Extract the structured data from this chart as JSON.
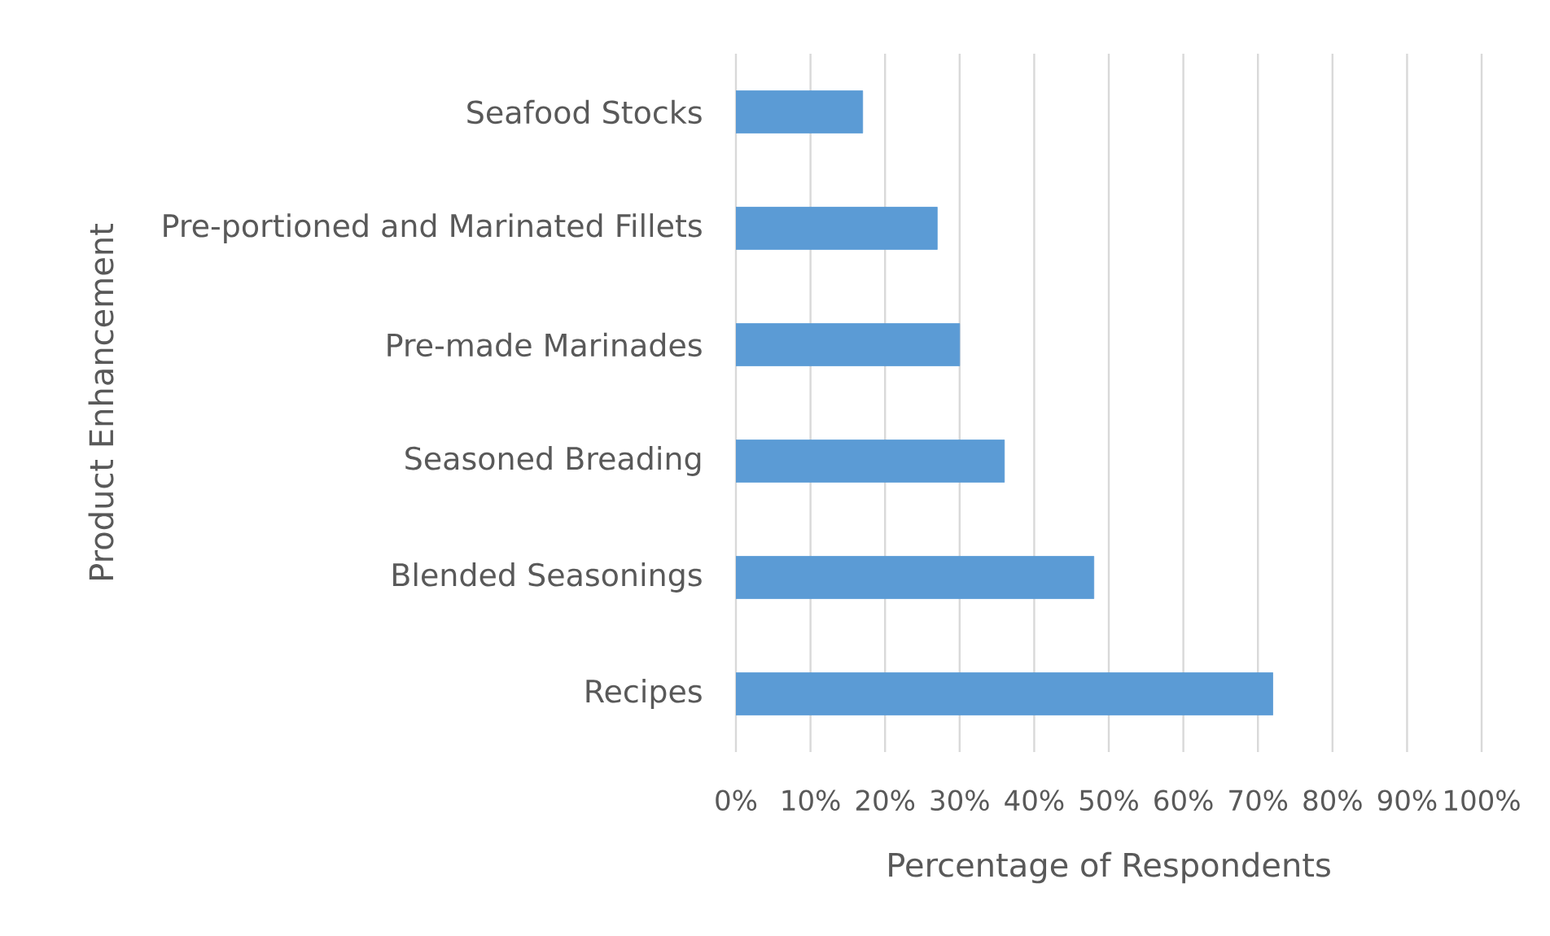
{
  "chart_data": {
    "type": "bar",
    "orientation": "horizontal",
    "xlabel": "Percentage of Respondents",
    "ylabel": "Product Enhancement",
    "categories": [
      "Seafood Stocks",
      "Pre-portioned and Marinated Fillets",
      "Pre-made Marinades",
      "Seasoned Breading",
      "Blended Seasonings",
      "Recipes"
    ],
    "values": [
      17,
      27,
      30,
      36,
      48,
      72
    ],
    "color": "#5b9bd5",
    "xlim": [
      0,
      100
    ],
    "xticks": [
      {
        "value": 0,
        "label": "0%"
      },
      {
        "value": 10,
        "label": "10%"
      },
      {
        "value": 20,
        "label": "20%"
      },
      {
        "value": 30,
        "label": "30%"
      },
      {
        "value": 40,
        "label": "40%"
      },
      {
        "value": 50,
        "label": "50%"
      },
      {
        "value": 60,
        "label": "60%"
      },
      {
        "value": 70,
        "label": "70%"
      },
      {
        "value": 80,
        "label": "80%"
      },
      {
        "value": 90,
        "label": "90%"
      },
      {
        "value": 100,
        "label": "100%"
      }
    ],
    "grid": "x"
  }
}
